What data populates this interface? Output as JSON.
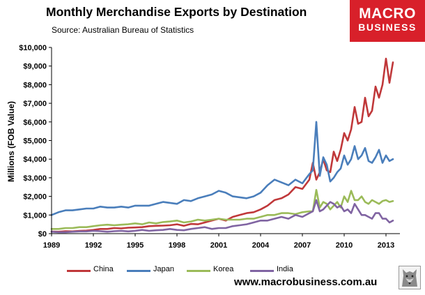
{
  "title": "Monthly Merchandise Exports by Destination",
  "subtitle": "Source:  Australian Bureau of Statistics",
  "logo": {
    "line1": "MACRO",
    "line2": "BUSINESS",
    "color": "#d8202a"
  },
  "website": "www.macrobusiness.com.au",
  "chart_data": {
    "type": "line",
    "ylabel": "Millions (FOB Value)",
    "xlabel": "",
    "ylim": [
      0,
      10000
    ],
    "yticks": [
      "$0",
      "$1,000",
      "$2,000",
      "$3,000",
      "$4,000",
      "$5,000",
      "$6,000",
      "$7,000",
      "$8,000",
      "$9,000",
      "$10,000"
    ],
    "xlim": [
      1989,
      2014
    ],
    "xticks": [
      "1989",
      "1992",
      "1995",
      "1998",
      "2001",
      "2004",
      "2007",
      "2010",
      "2013"
    ],
    "legend_position": "bottom",
    "grid": false,
    "x": [
      1989.0,
      1989.5,
      1990.0,
      1990.5,
      1991.0,
      1991.5,
      1992.0,
      1992.5,
      1993.0,
      1993.5,
      1994.0,
      1994.5,
      1995.0,
      1995.5,
      1996.0,
      1996.5,
      1997.0,
      1997.5,
      1998.0,
      1998.5,
      1999.0,
      1999.5,
      2000.0,
      2000.5,
      2001.0,
      2001.5,
      2002.0,
      2002.5,
      2003.0,
      2003.5,
      2004.0,
      2004.5,
      2005.0,
      2005.5,
      2006.0,
      2006.5,
      2007.0,
      2007.5,
      2007.75,
      2008.0,
      2008.25,
      2008.5,
      2008.75,
      2009.0,
      2009.25,
      2009.5,
      2009.75,
      2010.0,
      2010.25,
      2010.5,
      2010.75,
      2011.0,
      2011.25,
      2011.5,
      2011.75,
      2012.0,
      2012.25,
      2012.5,
      2012.75,
      2013.0,
      2013.25,
      2013.5
    ],
    "series": [
      {
        "name": "China",
        "color": "#c0383a",
        "values": [
          110,
          100,
          130,
          120,
          150,
          160,
          200,
          250,
          250,
          300,
          280,
          320,
          330,
          350,
          400,
          420,
          430,
          450,
          500,
          420,
          520,
          500,
          600,
          700,
          800,
          700,
          900,
          1000,
          1100,
          1150,
          1300,
          1500,
          1800,
          1900,
          2100,
          2500,
          2400,
          2900,
          3800,
          2900,
          3300,
          4000,
          3400,
          3300,
          4400,
          3900,
          4500,
          5400,
          5000,
          5600,
          6800,
          5900,
          6000,
          7300,
          6300,
          6600,
          7900,
          7300,
          8000,
          9400,
          8100,
          9200
        ]
      },
      {
        "name": "Japan",
        "color": "#4a7ebb",
        "values": [
          1000,
          1150,
          1250,
          1250,
          1300,
          1350,
          1350,
          1450,
          1400,
          1400,
          1450,
          1400,
          1500,
          1500,
          1500,
          1600,
          1700,
          1650,
          1600,
          1800,
          1750,
          1900,
          2000,
          2100,
          2300,
          2200,
          2000,
          1950,
          1900,
          2000,
          2200,
          2600,
          2900,
          2750,
          2600,
          2900,
          2700,
          3200,
          3400,
          6000,
          3100,
          4100,
          3700,
          2800,
          3000,
          3300,
          3500,
          4200,
          3700,
          4000,
          4700,
          4000,
          4200,
          4600,
          3900,
          3800,
          4100,
          4500,
          3800,
          4200,
          3900,
          4000
        ]
      },
      {
        "name": "Korea",
        "color": "#9bbb59",
        "values": [
          250,
          250,
          300,
          300,
          350,
          350,
          400,
          450,
          480,
          450,
          480,
          500,
          550,
          500,
          600,
          550,
          620,
          650,
          700,
          600,
          650,
          750,
          700,
          750,
          800,
          750,
          750,
          750,
          800,
          800,
          900,
          1000,
          1000,
          1100,
          1100,
          1050,
          1150,
          1200,
          1200,
          2350,
          1400,
          1700,
          1600,
          1300,
          1500,
          1700,
          1400,
          2000,
          1700,
          2300,
          1800,
          1800,
          2000,
          1700,
          1600,
          1800,
          1700,
          1600,
          1750,
          1800,
          1700,
          1750
        ]
      },
      {
        "name": "India",
        "color": "#8064a2",
        "values": [
          100,
          80,
          80,
          100,
          120,
          120,
          150,
          130,
          100,
          130,
          150,
          120,
          150,
          200,
          150,
          180,
          200,
          250,
          200,
          180,
          250,
          300,
          350,
          250,
          300,
          300,
          400,
          450,
          500,
          600,
          700,
          700,
          800,
          900,
          800,
          1000,
          900,
          1100,
          1200,
          1800,
          1200,
          1300,
          1500,
          1700,
          1600,
          1400,
          1500,
          1200,
          1300,
          1100,
          1600,
          1300,
          1000,
          1000,
          900,
          800,
          1100,
          1100,
          800,
          800,
          600,
          700
        ]
      }
    ]
  }
}
